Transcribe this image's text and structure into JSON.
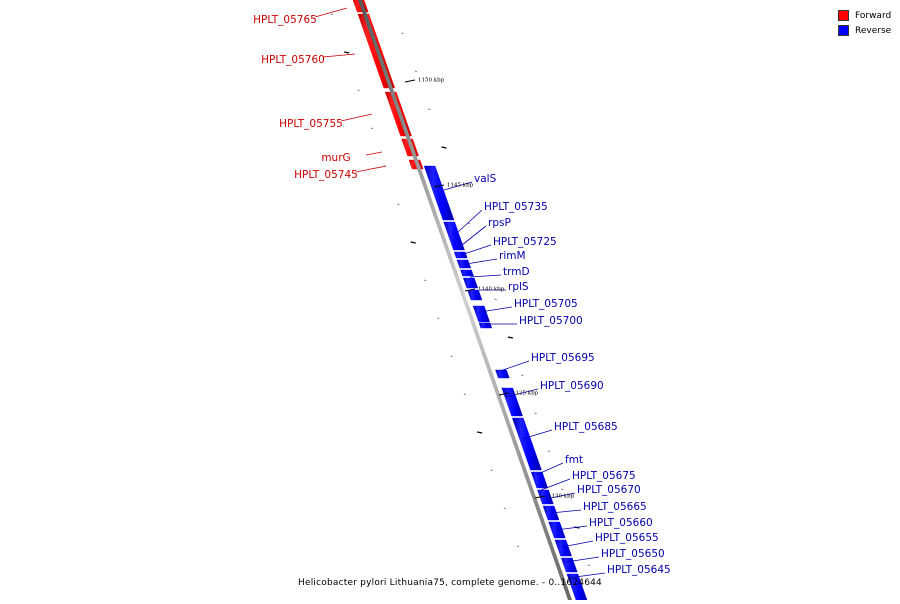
{
  "legend": {
    "forward_label": "Forward",
    "reverse_label": "Reverse",
    "forward_color": "#ff0000",
    "reverse_color": "#0000ff"
  },
  "caption": "Helicobacter pylori Lithuania75, complete genome. - 0..1624644",
  "scale_labels": [
    "1150 kbp",
    "1145 kbp",
    "1140 kbp",
    "1135 kbp",
    "1130 kbp"
  ],
  "forward_genes": [
    "HPLT_05765",
    "HPLT_05760",
    "HPLT_05755",
    "murG",
    "HPLT_05745"
  ],
  "reverse_genes": [
    "valS",
    "HPLT_05735",
    "rpsP",
    "HPLT_05725",
    "rimM",
    "trmD",
    "rplS",
    "HPLT_05705",
    "HPLT_05700",
    "HPLT_05695",
    "HPLT_05690",
    "HPLT_05685",
    "fmt",
    "HPLT_05675",
    "HPLT_05670",
    "HPLT_05665",
    "HPLT_05660",
    "HPLT_05655",
    "HPLT_05650",
    "HPLT_05645"
  ]
}
